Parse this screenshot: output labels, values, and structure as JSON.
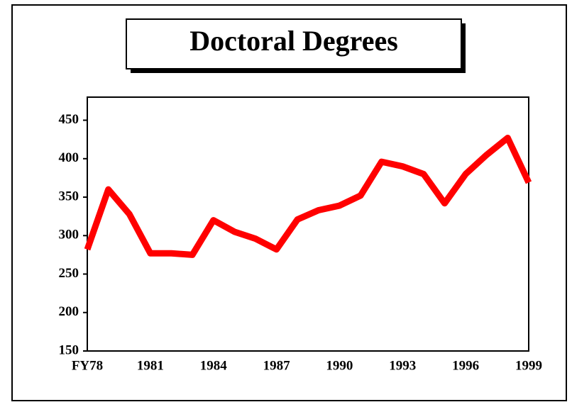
{
  "chart_data": {
    "type": "line",
    "title": "Doctoral Degrees",
    "categories": [
      "FY78",
      null,
      null,
      "1981",
      null,
      null,
      "1984",
      null,
      null,
      "1987",
      null,
      null,
      "1990",
      null,
      null,
      "1993",
      null,
      null,
      "1996",
      null,
      null,
      "1999"
    ],
    "series": [
      {
        "name": "Doctoral Degrees",
        "color": "#ff0000",
        "values": [
          282,
          360,
          328,
          277,
          277,
          275,
          320,
          305,
          296,
          282,
          321,
          333,
          339,
          352,
          396,
          390,
          380,
          342,
          380,
          405,
          427,
          369
        ]
      }
    ],
    "ylim": [
      150,
      480
    ],
    "yticks": [
      150,
      200,
      250,
      300,
      350,
      400,
      450
    ]
  }
}
